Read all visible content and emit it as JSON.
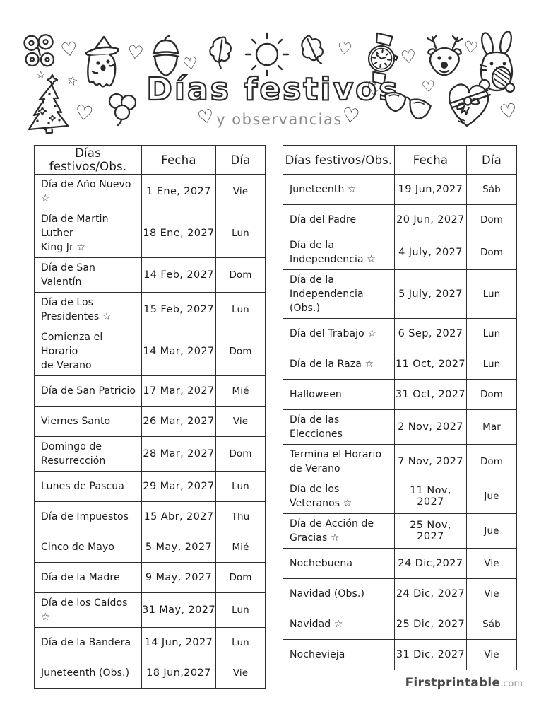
{
  "page": {
    "title": "Días festivos",
    "subtitle": "y observancias",
    "footer_brand": "Firstprintable",
    "footer_suffix": ".com"
  },
  "colors": {
    "ink": "#2b2b2b",
    "subtitle_gray": "#8a8a8a",
    "footer_brand": "#4b4b4b",
    "footer_suffix": "#9b9b9b",
    "table_border": "#2e2e2e"
  },
  "glyphs": {
    "heart": "♡",
    "star": "☆"
  },
  "decorations": [
    "butterfly",
    "heart",
    "ghost-witch-hat",
    "stars",
    "christmas-tree",
    "shamrock",
    "acorn",
    "oak-leaf",
    "sun",
    "oak-leaf",
    "wrist-watch",
    "reindeer",
    "easter-bunny-with-egg",
    "sunglasses",
    "heart-chocolate-box",
    "hearts"
  ],
  "table_left": {
    "headers": [
      "Días festivos/Obs.",
      "Fecha",
      "Día"
    ],
    "rows": [
      {
        "name": "Día de Año Nuevo ☆",
        "date": "1 Ene, 2027",
        "day": "Vie"
      },
      {
        "name": "Día de Martin Luther\nKing Jr ☆",
        "date": "18 Ene, 2027",
        "day": "Lun"
      },
      {
        "name": "Día de San Valentín",
        "date": "14 Feb, 2027",
        "day": "Dom"
      },
      {
        "name": "Día de Los\nPresidentes ☆",
        "date": "15 Feb, 2027",
        "day": "Lun"
      },
      {
        "name": "Comienza el Horario\nde Verano",
        "date": "14 Mar, 2027",
        "day": "Dom"
      },
      {
        "name": "Día de San Patricio",
        "date": "17 Mar, 2027",
        "day": "Mié"
      },
      {
        "name": "Viernes Santo",
        "date": "26 Mar, 2027",
        "day": "Vie"
      },
      {
        "name": "Domingo de\nResurrección",
        "date": "28 Mar, 2027",
        "day": "Dom"
      },
      {
        "name": "Lunes de Pascua",
        "date": "29 Mar, 2027",
        "day": "Lun"
      },
      {
        "name": "Día de Impuestos",
        "date": "15 Abr, 2027",
        "day": "Thu"
      },
      {
        "name": "Cinco de Mayo",
        "date": "5 May, 2027",
        "day": "Mié"
      },
      {
        "name": "Día de la Madre",
        "date": "9 May, 2027",
        "day": "Dom"
      },
      {
        "name": "Día de los Caídos ☆",
        "date": "31 May, 2027",
        "day": "Lun"
      },
      {
        "name": "Día de la Bandera",
        "date": "14 Jun, 2027",
        "day": "Lun"
      },
      {
        "name": "Juneteenth (Obs.)",
        "date": "18 Jun,2027",
        "day": "Vie"
      }
    ]
  },
  "table_right": {
    "headers": [
      "Días festivos/Obs.",
      "Fecha",
      "Día"
    ],
    "rows": [
      {
        "name": "Juneteenth ☆",
        "date": "19 Jun,2027",
        "day": "Sáb"
      },
      {
        "name": "Día del Padre",
        "date": "20 Jun, 2027",
        "day": "Dom"
      },
      {
        "name": "Día de la\nIndependencia ☆",
        "date": "4 July, 2027",
        "day": "Dom"
      },
      {
        "name": "Día de la\nIndependencia (Obs.)",
        "date": "5 July, 2027",
        "day": "Lun"
      },
      {
        "name": "Día del Trabajo ☆",
        "date": "6 Sep, 2027",
        "day": "Lun"
      },
      {
        "name": "Día de la Raza ☆",
        "date": "11 Oct, 2027",
        "day": "Lun"
      },
      {
        "name": "Halloween",
        "date": "31 Oct, 2027",
        "day": "Dom"
      },
      {
        "name": "Día de las Elecciones",
        "date": "2 Nov, 2027",
        "day": "Mar"
      },
      {
        "name": "Termina el Horario\nde Verano",
        "date": "7 Nov, 2027",
        "day": "Dom"
      },
      {
        "name": "Día de los Veteranos ☆",
        "date": "11 Nov, 2027",
        "day": "Jue"
      },
      {
        "name": "Día de Acción de\nGracias ☆",
        "date": "25 Nov, 2027",
        "day": "Jue"
      },
      {
        "name": "Nochebuena",
        "date": "24 Dic,2027",
        "day": "Vie"
      },
      {
        "name": "Navidad (Obs.)",
        "date": "24 Dic, 2027",
        "day": "Vie"
      },
      {
        "name": "Navidad ☆",
        "date": "25 Dic, 2027",
        "day": "Sáb"
      },
      {
        "name": "Nochevieja",
        "date": "31 Dic, 2027",
        "day": "Vie"
      }
    ]
  }
}
